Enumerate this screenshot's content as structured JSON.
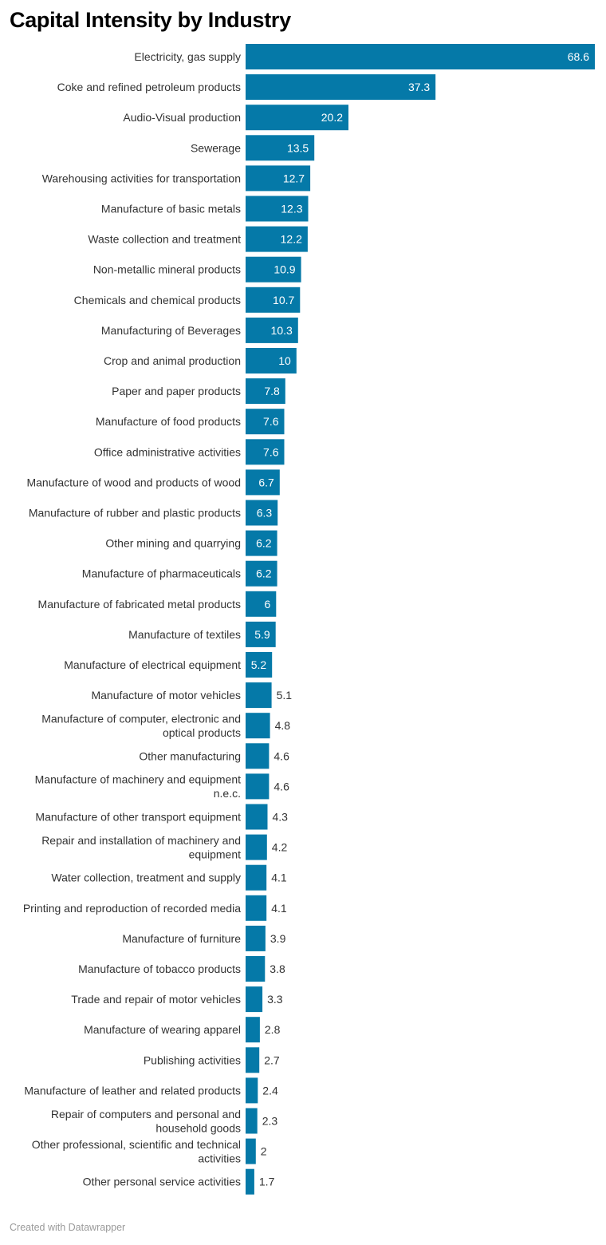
{
  "title": "Capital Intensity by Industry",
  "footer": "Created with Datawrapper",
  "colors": {
    "bar": "#0579a8",
    "label_inside": "#ffffff",
    "label_outside": "#333333",
    "text": "#333333"
  },
  "chart_data": {
    "type": "bar",
    "orientation": "horizontal",
    "title": "Capital Intensity by Industry",
    "xlabel": "",
    "ylabel": "",
    "xlim": [
      0,
      68.6
    ],
    "grid": false,
    "categories": [
      "Electricity, gas supply",
      "Coke and refined petroleum products",
      "Audio-Visual production",
      "Sewerage",
      "Warehousing activities for transportation",
      "Manufacture of basic metals",
      "Waste collection and treatment",
      "Non-metallic mineral products",
      "Chemicals and chemical products",
      "Manufacturing of Beverages",
      "Crop and animal production",
      "Paper and paper products",
      "Manufacture of food products",
      "Office administrative activities",
      "Manufacture of wood and products of wood",
      "Manufacture of rubber and plastic products",
      "Other mining and quarrying",
      "Manufacture of pharmaceuticals",
      "Manufacture of fabricated metal products",
      "Manufacture of textiles",
      "Manufacture of electrical equipment",
      "Manufacture of motor vehicles",
      "Manufacture of computer, electronic and optical products",
      "Other manufacturing",
      "Manufacture of machinery and equipment n.e.c.",
      "Manufacture of other transport equipment",
      "Repair and installation of machinery and equipment",
      "Water collection, treatment and supply",
      "Printing and reproduction of recorded media",
      "Manufacture of furniture",
      "Manufacture of tobacco products",
      "Trade and repair of motor vehicles",
      "Manufacture of wearing apparel",
      "Publishing activities",
      "Manufacture of leather and related products",
      "Repair of computers and personal and household goods",
      "Other professional, scientific and technical activities",
      "Other personal service activities"
    ],
    "values": [
      68.6,
      37.3,
      20.2,
      13.5,
      12.7,
      12.3,
      12.2,
      10.9,
      10.7,
      10.3,
      10,
      7.8,
      7.6,
      7.6,
      6.7,
      6.3,
      6.2,
      6.2,
      6,
      5.9,
      5.2,
      5.1,
      4.8,
      4.6,
      4.6,
      4.3,
      4.2,
      4.1,
      4.1,
      3.9,
      3.8,
      3.3,
      2.8,
      2.7,
      2.4,
      2.3,
      2,
      1.7
    ]
  }
}
